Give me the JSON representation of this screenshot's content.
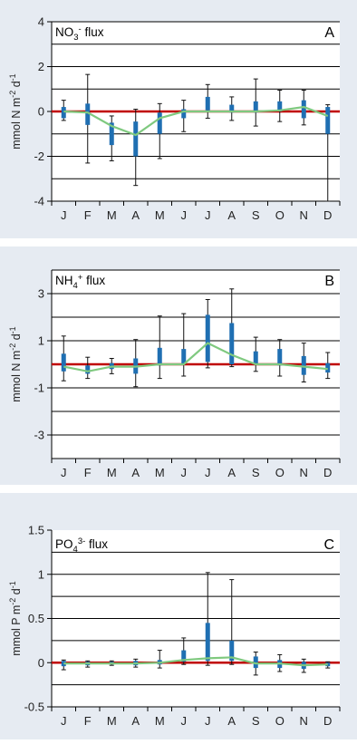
{
  "chart_data": [
    {
      "type": "box",
      "panel_letter": "A",
      "title_main": "NO",
      "title_sub": "3",
      "title_sup": "-",
      "title_rest": " flux",
      "ylabel": "mmol N m-2 d-1",
      "ylabel_parts": [
        "mmol N m",
        "-2",
        " d",
        "-1"
      ],
      "ylim": [
        -4,
        4
      ],
      "yticks": [
        -4,
        -2,
        0,
        2,
        4
      ],
      "gridlines": [
        -4,
        -3,
        -2,
        -1,
        1,
        2,
        3,
        4
      ],
      "categories": [
        "J",
        "F",
        "M",
        "A",
        "M",
        "J",
        "J",
        "A",
        "S",
        "O",
        "N",
        "D"
      ],
      "boxes": [
        {
          "low": -0.4,
          "q1": -0.3,
          "q3": 0.2,
          "high": 0.5
        },
        {
          "low": -2.3,
          "q1": -0.6,
          "q3": 0.35,
          "high": 1.65
        },
        {
          "low": -2.2,
          "q1": -1.5,
          "q3": -0.5,
          "high": -0.2
        },
        {
          "low": -3.3,
          "q1": -2.0,
          "q3": -0.45,
          "high": 0.1
        },
        {
          "low": -2.1,
          "q1": -1.0,
          "q3": -0.05,
          "high": 0.35
        },
        {
          "low": -0.9,
          "q1": -0.3,
          "q3": 0.1,
          "high": 0.5
        },
        {
          "low": -0.3,
          "q1": 0.05,
          "q3": 0.65,
          "high": 1.2
        },
        {
          "low": -0.4,
          "q1": -0.05,
          "q3": 0.3,
          "high": 0.65
        },
        {
          "low": -0.65,
          "q1": -0.05,
          "q3": 0.45,
          "high": 1.45
        },
        {
          "low": -0.45,
          "q1": 0.0,
          "q3": 0.45,
          "high": 0.95
        },
        {
          "low": -0.6,
          "q1": -0.3,
          "q3": 0.5,
          "high": 0.95
        },
        {
          "low": -4.0,
          "q1": -1.0,
          "q3": 0.2,
          "high": 0.3
        }
      ],
      "median": [
        0,
        -0.05,
        -0.65,
        -1.05,
        -0.3,
        0.0,
        0.0,
        0.0,
        0.0,
        0.05,
        0.2,
        -0.2
      ]
    },
    {
      "type": "box",
      "panel_letter": "B",
      "title_main": "NH",
      "title_sub": "4",
      "title_sup": "+",
      "title_rest": " flux",
      "ylabel": "mmol N m-2 d-1",
      "ylabel_parts": [
        "mmol N m",
        "-2",
        " d",
        "-1"
      ],
      "ylim": [
        -4,
        4
      ],
      "yticks": [
        -3,
        -1,
        1,
        3
      ],
      "gridlines": [
        -4,
        -3,
        -2,
        -1,
        1,
        2,
        3,
        4
      ],
      "categories": [
        "J",
        "F",
        "M",
        "A",
        "M",
        "J",
        "J",
        "A",
        "S",
        "O",
        "N",
        "D"
      ],
      "boxes": [
        {
          "low": -0.7,
          "q1": -0.3,
          "q3": 0.45,
          "high": 1.2
        },
        {
          "low": -0.6,
          "q1": -0.4,
          "q3": -0.05,
          "high": 0.3
        },
        {
          "low": -0.4,
          "q1": -0.2,
          "q3": 0.05,
          "high": 0.25
        },
        {
          "low": -0.95,
          "q1": -0.4,
          "q3": 0.25,
          "high": 1.05
        },
        {
          "low": -0.6,
          "q1": -0.05,
          "q3": 0.7,
          "high": 2.05
        },
        {
          "low": -0.5,
          "q1": 0.0,
          "q3": 0.65,
          "high": 2.15
        },
        {
          "low": -0.15,
          "q1": 0.1,
          "q3": 2.1,
          "high": 2.75
        },
        {
          "low": -0.1,
          "q1": 0.0,
          "q3": 1.75,
          "high": 3.2
        },
        {
          "low": -0.3,
          "q1": 0.0,
          "q3": 0.55,
          "high": 1.15
        },
        {
          "low": -0.5,
          "q1": -0.05,
          "q3": 0.65,
          "high": 1.05
        },
        {
          "low": -0.75,
          "q1": -0.45,
          "q3": 0.35,
          "high": 0.9
        },
        {
          "low": -0.6,
          "q1": -0.35,
          "q3": 0.05,
          "high": 0.5
        }
      ],
      "median": [
        -0.1,
        -0.3,
        -0.1,
        -0.1,
        0.0,
        0.0,
        0.9,
        0.4,
        0.0,
        0.0,
        -0.1,
        -0.2
      ]
    },
    {
      "type": "box",
      "panel_letter": "C",
      "title_main": "PO",
      "title_sub": "4",
      "title_sup": "3-",
      "title_rest": " flux",
      "ylabel": "mmol P m-2 d-1",
      "ylabel_parts": [
        "mmol P m",
        "-2",
        " d",
        "-1"
      ],
      "ylim": [
        -0.5,
        1.5
      ],
      "yticks": [
        -0.5,
        0,
        0.5,
        1,
        1.5
      ],
      "yticklabels": [
        "-0.5",
        "0",
        "0.5",
        "1",
        "1.5"
      ],
      "gridlines": [
        -0.5,
        -0.25,
        0.25,
        0.5,
        0.75,
        1.0,
        1.25
      ],
      "categories": [
        "J",
        "F",
        "M",
        "A",
        "M",
        "J",
        "J",
        "A",
        "S",
        "O",
        "N",
        "D"
      ],
      "boxes": [
        {
          "low": -0.08,
          "q1": -0.04,
          "q3": 0.02,
          "high": 0.03
        },
        {
          "low": -0.05,
          "q1": -0.03,
          "q3": 0.01,
          "high": 0.02
        },
        {
          "low": -0.03,
          "q1": -0.02,
          "q3": 0.01,
          "high": 0.02
        },
        {
          "low": -0.05,
          "q1": -0.03,
          "q3": 0.02,
          "high": 0.04
        },
        {
          "low": -0.06,
          "q1": -0.02,
          "q3": 0.03,
          "high": 0.14
        },
        {
          "low": -0.02,
          "q1": 0.01,
          "q3": 0.14,
          "high": 0.28
        },
        {
          "low": -0.03,
          "q1": 0.02,
          "q3": 0.45,
          "high": 1.02
        },
        {
          "low": -0.02,
          "q1": 0.02,
          "q3": 0.25,
          "high": 0.94
        },
        {
          "low": -0.14,
          "q1": -0.06,
          "q3": 0.07,
          "high": 0.12
        },
        {
          "low": -0.1,
          "q1": -0.06,
          "q3": 0.03,
          "high": 0.09
        },
        {
          "low": -0.11,
          "q1": -0.07,
          "q3": 0.01,
          "high": 0.04
        },
        {
          "low": -0.06,
          "q1": -0.04,
          "q3": 0.0,
          "high": 0.01
        }
      ],
      "median": [
        -0.01,
        -0.01,
        -0.01,
        -0.01,
        0.0,
        0.03,
        0.05,
        0.06,
        -0.01,
        -0.01,
        -0.03,
        -0.02
      ]
    }
  ],
  "colors": {
    "panel_background": "#e6ebf2",
    "box": "#1f6fb2",
    "median_line": "#7fc97f",
    "zero_line": "#c00000",
    "grid": "#000000"
  }
}
